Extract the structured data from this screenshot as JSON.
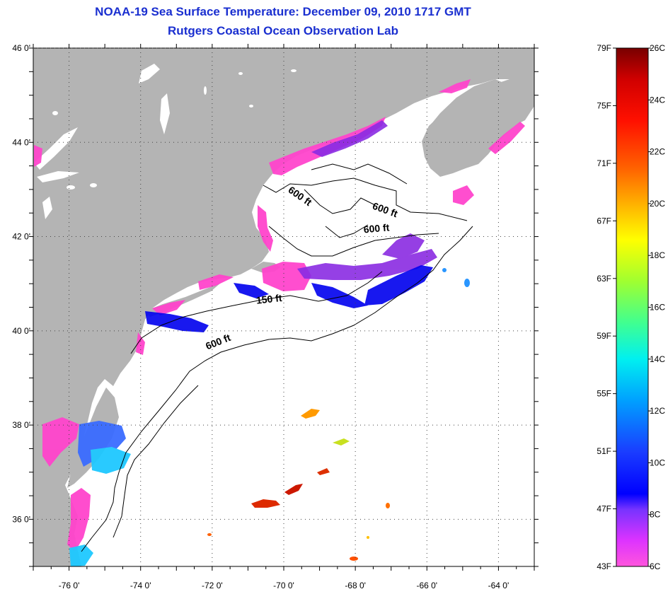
{
  "title": "NOAA-19 Sea Surface Temperature:  December 09, 2010 1717 GMT",
  "subtitle": "Rutgers Coastal Ocean Observation Lab",
  "map": {
    "lon_range": [
      -77,
      -63
    ],
    "lat_range": [
      35,
      46
    ],
    "lon_ticks": [
      {
        "value": -76,
        "label": "-76 0'"
      },
      {
        "value": -74,
        "label": "-74 0'"
      },
      {
        "value": -72,
        "label": "-72 0'"
      },
      {
        "value": -70,
        "label": "-70 0'"
      },
      {
        "value": -68,
        "label": "-68 0'"
      },
      {
        "value": -66,
        "label": "-66 0'"
      },
      {
        "value": -64,
        "label": "-64 0'"
      }
    ],
    "lat_ticks": [
      {
        "value": 46,
        "label": "46 0'"
      },
      {
        "value": 44,
        "label": "44 0'"
      },
      {
        "value": 42,
        "label": "42 0'"
      },
      {
        "value": 40,
        "label": "40 0'"
      },
      {
        "value": 38,
        "label": "38 0'"
      },
      {
        "value": 36,
        "label": "36 0'"
      }
    ],
    "contour_labels": [
      {
        "text": "600 ft",
        "lon": -71.8,
        "lat": 39.7,
        "rotate": -22
      },
      {
        "text": "150 ft",
        "lon": -70.4,
        "lat": 40.6,
        "rotate": -6
      },
      {
        "text": "600 ft",
        "lon": -69.6,
        "lat": 42.8,
        "rotate": 35
      },
      {
        "text": "600 ft",
        "lon": -67.2,
        "lat": 42.5,
        "rotate": 20
      },
      {
        "text": "600 ft",
        "lon": -67.4,
        "lat": 42.1,
        "rotate": -5
      }
    ],
    "land_color": "#b4b4b4",
    "ocean_color": "#ffffff",
    "grid": true
  },
  "colorbar": {
    "f_labels": [
      "79F",
      "75F",
      "71F",
      "67F",
      "63F",
      "59F",
      "55F",
      "51F",
      "47F",
      "43F"
    ],
    "c_labels": [
      "26C",
      "24C",
      "22C",
      "20C",
      "18C",
      "16C",
      "14C",
      "12C",
      "10C",
      "8C",
      "6C"
    ]
  }
}
